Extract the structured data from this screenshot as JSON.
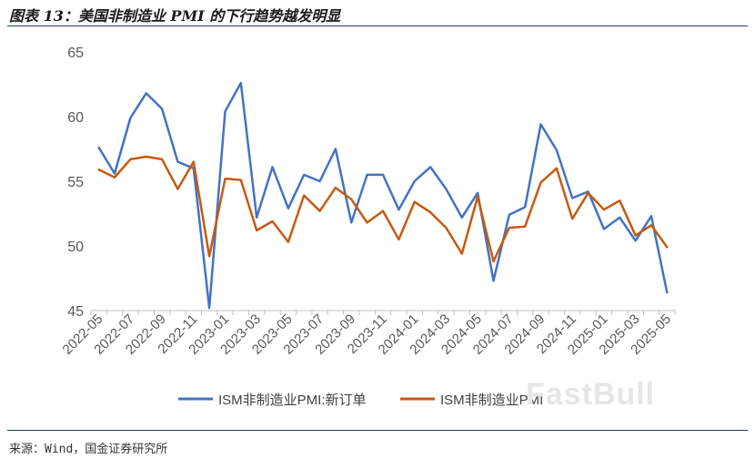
{
  "figure": {
    "title": "图表 13：美国非制造业 PMI 的下行趋势越发明显",
    "source": "来源：Wind，国金证券研究所",
    "watermark": "FastBull"
  },
  "colors": {
    "series1": "#4472c4",
    "series2": "#c55a11",
    "axis": "#bfbfbf",
    "tick_text": "#595959",
    "legend_text": "#404040"
  },
  "chart_data": {
    "type": "line",
    "title": "",
    "xlabel": "",
    "ylabel": "",
    "ylim": [
      45,
      65
    ],
    "yticks": [
      45,
      50,
      55,
      60,
      65
    ],
    "grid": false,
    "legend_position": "bottom",
    "categories": [
      "2022-05",
      "2022-06",
      "2022-07",
      "2022-08",
      "2022-09",
      "2022-10",
      "2022-11",
      "2022-12",
      "2023-01",
      "2023-02",
      "2023-03",
      "2023-04",
      "2023-05",
      "2023-06",
      "2023-07",
      "2023-08",
      "2023-09",
      "2023-10",
      "2023-11",
      "2023-12",
      "2024-01",
      "2024-02",
      "2024-03",
      "2024-04",
      "2024-05",
      "2024-06",
      "2024-07",
      "2024-08",
      "2024-09",
      "2024-10",
      "2024-11",
      "2024-12",
      "2025-01",
      "2025-02",
      "2025-03",
      "2025-04",
      "2025-05"
    ],
    "tick_labels": [
      "2022-05",
      "2022-07",
      "2022-09",
      "2022-11",
      "2023-01",
      "2023-03",
      "2023-05",
      "2023-07",
      "2023-09",
      "2023-11",
      "2024-01",
      "2024-03",
      "2024-05",
      "2024-07",
      "2024-09",
      "2024-11",
      "2025-01",
      "2025-03",
      "2025-05"
    ],
    "series": [
      {
        "name": "ISM非制造业PMI:新订单",
        "values": [
          57.6,
          55.6,
          59.9,
          61.8,
          60.6,
          56.5,
          56.0,
          45.2,
          60.4,
          62.6,
          52.2,
          56.1,
          52.9,
          55.5,
          55.0,
          57.5,
          51.8,
          55.5,
          55.5,
          52.8,
          55.0,
          56.1,
          54.4,
          52.2,
          54.1,
          47.3,
          52.4,
          53.0,
          59.4,
          57.4,
          53.7,
          54.2,
          51.3,
          52.2,
          50.4,
          52.3,
          46.4
        ]
      },
      {
        "name": "ISM非制造业PMI",
        "values": [
          55.9,
          55.3,
          56.7,
          56.9,
          56.7,
          54.4,
          56.5,
          49.2,
          55.2,
          55.1,
          51.2,
          51.9,
          50.3,
          53.9,
          52.7,
          54.5,
          53.6,
          51.8,
          52.7,
          50.5,
          53.4,
          52.6,
          51.4,
          49.4,
          53.8,
          48.8,
          51.4,
          51.5,
          54.9,
          56.0,
          52.1,
          54.1,
          52.8,
          53.5,
          50.8,
          51.6,
          49.9
        ]
      }
    ]
  }
}
